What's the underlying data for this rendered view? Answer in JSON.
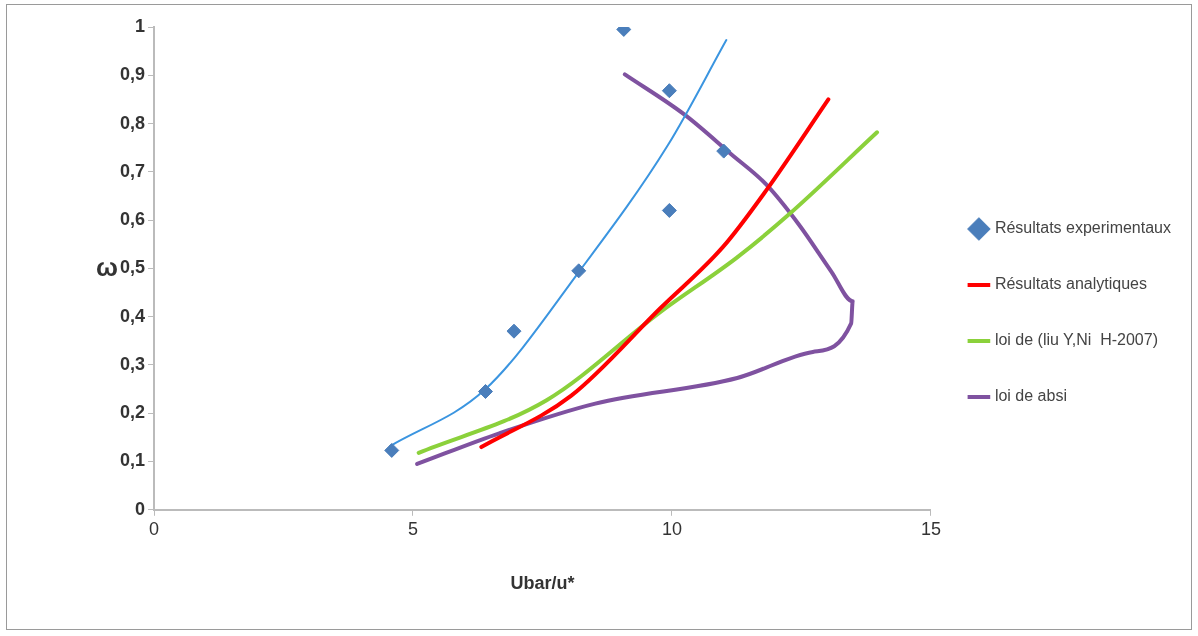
{
  "chart_data": {
    "type": "line",
    "xlabel": "Ubar/u*",
    "ylabel": "ω",
    "xlim": [
      0,
      15
    ],
    "xticks": [
      0,
      5,
      10,
      15
    ],
    "ylim": [
      0,
      1
    ],
    "yticks": [
      {
        "value": 0,
        "label": "0"
      },
      {
        "value": 0.1,
        "label": "0,1"
      },
      {
        "value": 0.2,
        "label": "0,2"
      },
      {
        "value": 0.3,
        "label": "0,3"
      },
      {
        "value": 0.4,
        "label": "0,4"
      },
      {
        "value": 0.5,
        "label": "0,5"
      },
      {
        "value": 0.6,
        "label": "0,6"
      },
      {
        "value": 0.7,
        "label": "0,7"
      },
      {
        "value": 0.8,
        "label": "0,8"
      },
      {
        "value": 0.9,
        "label": "0,9"
      },
      {
        "value": 1,
        "label": "1"
      }
    ],
    "grid": false,
    "legend": "right",
    "series": [
      {
        "name": "Résultats experimentaux",
        "type": "scatter",
        "marker": "diamond",
        "color": "#4a7ebb",
        "x": [
          4.59,
          6.4,
          6.95,
          8.2,
          9.95,
          11.0,
          9.95,
          9.07
        ],
        "values": [
          0.123,
          0.245,
          0.37,
          0.495,
          0.62,
          0.743,
          0.868,
          0.995
        ]
      },
      {
        "color": "#3b95e0",
        "x": [
          4.56,
          6.4,
          8.24,
          9.92,
          11.05
        ],
        "values": [
          0.132,
          0.25,
          0.498,
          0.755,
          0.973
        ]
      },
      {
        "name": "Résultats analytiques",
        "color": "#ff0000",
        "x": [
          6.32,
          8.05,
          9.78,
          10.99,
          11.81,
          13.02
        ],
        "values": [
          0.13,
          0.236,
          0.418,
          0.545,
          0.66,
          0.85
        ]
      },
      {
        "name": "loi de (liu Y,Ni  H-2007)",
        "color": "#8bd13b",
        "x": [
          5.11,
          7.58,
          9.78,
          11.26,
          12.25,
          13.96
        ],
        "values": [
          0.118,
          0.227,
          0.41,
          0.523,
          0.611,
          0.782
        ]
      },
      {
        "name": "loi de absi",
        "color": "#7f52a0",
        "x": [
          5.08,
          6.68,
          8.52,
          11.26,
          12.72,
          13.46,
          13.49,
          13.08,
          12.45,
          11.81,
          11.15,
          10.25,
          9.09
        ],
        "values": [
          0.095,
          0.159,
          0.22,
          0.273,
          0.327,
          0.386,
          0.432,
          0.493,
          0.591,
          0.675,
          0.736,
          0.818,
          0.902
        ]
      }
    ]
  }
}
